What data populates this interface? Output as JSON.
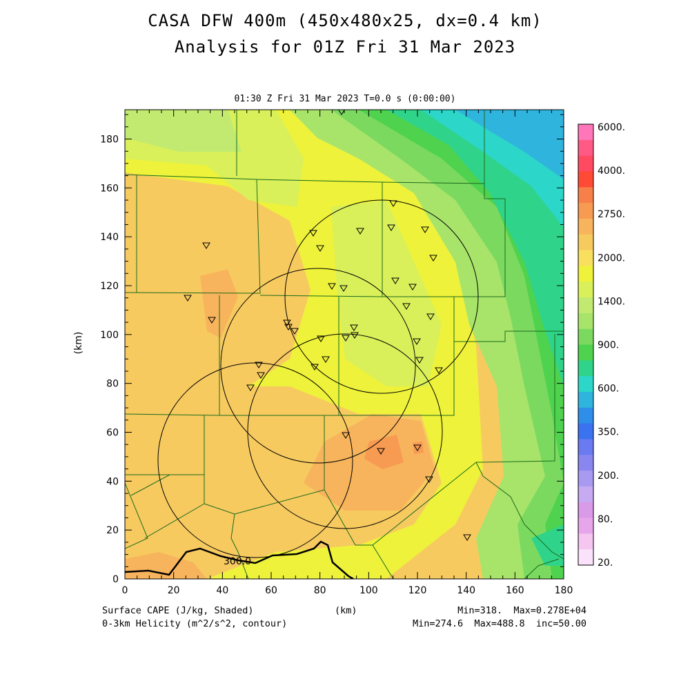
{
  "header": {
    "title": "CASA DFW 400m (450x480x25, dx=0.4 km)",
    "subtitle": "Analysis for 01Z Fri 31 Mar 2023",
    "valid_time": "01:30 Z Fri 31 Mar 2023    T=0.0 s (0:00:00)"
  },
  "axes": {
    "x_ticks": [
      "0",
      "20",
      "40",
      "60",
      "80",
      "100",
      "120",
      "140",
      "160",
      "180"
    ],
    "y_ticks": [
      "0",
      "20",
      "40",
      "60",
      "80",
      "100",
      "120",
      "140",
      "160",
      "180"
    ],
    "x_label": "(km)",
    "y_label": "(km)",
    "x_range": [
      0,
      180
    ],
    "y_range": [
      0,
      192
    ]
  },
  "colorbar": {
    "labels": [
      "6000.",
      "4000.",
      "2750.",
      "2000.",
      "1400.",
      "900.",
      "600.",
      "350.",
      "200.",
      "80.",
      "20."
    ],
    "colors": [
      "#ff77b8",
      "#ff5a86",
      "#ff4a62",
      "#ff4a36",
      "#f7804a",
      "#f79a52",
      "#f7b45c",
      "#f7ca60",
      "#f8e05e",
      "#eef23a",
      "#d9f05a",
      "#c2ea70",
      "#a8e46a",
      "#7cd960",
      "#4fd24e",
      "#2fd48a",
      "#2cd6c8",
      "#2fb4de",
      "#2f8ee8",
      "#3a72ef",
      "#6a7af0",
      "#8a86f0",
      "#a89af0",
      "#c6aaf2",
      "#d99ae8",
      "#e8a6ea",
      "#f4c6f0",
      "#fbe2fb"
    ]
  },
  "contour_labels": [
    "300.0"
  ],
  "footer": {
    "left1": "Surface CAPE (J/kg, Shaded)",
    "left2": "0-3km Helicity (m^2/s^2, contour)",
    "center": "(km)",
    "right1": "Min=318.  Max=0.278E+04",
    "right2": "Min=274.6  Max=488.8  inc=50.00"
  }
}
